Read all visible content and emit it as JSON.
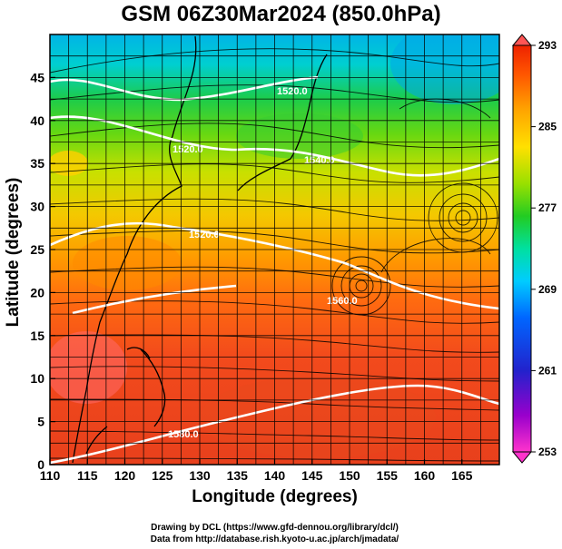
{
  "title": "GSM 06Z30Mar2024 (850.0hPa)",
  "x_axis": {
    "label": "Longitude (degrees)",
    "range": [
      110,
      170
    ],
    "ticks": [
      "110",
      "115",
      "120",
      "125",
      "130",
      "135",
      "140",
      "145",
      "150",
      "155",
      "160",
      "165"
    ]
  },
  "y_axis": {
    "label": "Latitude  (degrees)",
    "range": [
      0,
      50
    ],
    "ticks": [
      "0",
      "5",
      "10",
      "15",
      "20",
      "25",
      "30",
      "35",
      "40",
      "45"
    ]
  },
  "colorbar": {
    "ticks": [
      "253",
      "261",
      "269",
      "277",
      "285",
      "293"
    ],
    "min": 253,
    "max": 293,
    "colors": [
      "#ff33cc",
      "#9900cc",
      "#2222cc",
      "#0066ff",
      "#00ccff",
      "#00e0a0",
      "#22cc22",
      "#99e000",
      "#ffe000",
      "#ffa500",
      "#ff5500",
      "#ee2200"
    ]
  },
  "contour_labels": [
    "1520.0",
    "1520.0",
    "1540.0",
    "1520.0",
    "1560.0",
    "1580.0"
  ],
  "credits": {
    "line1": "Drawing by DCL (https://www.gfd-dennou.org/library/dcl/)",
    "line2": "Data from http://database.rish.kyoto-u.ac.jp/arch/jmadata/"
  }
}
